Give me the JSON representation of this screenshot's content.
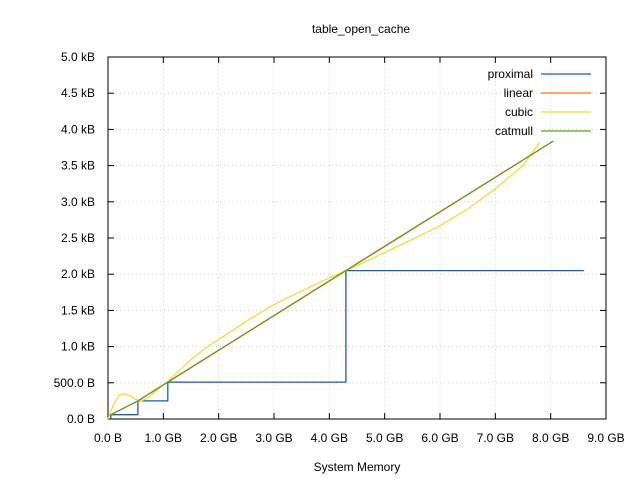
{
  "chart_data": {
    "type": "line",
    "title": "table_open_cache",
    "xlabel": "System Memory",
    "ylabel": "",
    "xlim": [
      0,
      9
    ],
    "ylim": [
      0,
      5
    ],
    "x_unit": "GB",
    "y_unit": "kB",
    "grid": true,
    "legend_position": "top-right",
    "x_ticks": [
      {
        "value": 0,
        "label": "0.0  B"
      },
      {
        "value": 1,
        "label": "1.0 GB"
      },
      {
        "value": 2,
        "label": "2.0 GB"
      },
      {
        "value": 3,
        "label": "3.0 GB"
      },
      {
        "value": 4,
        "label": "4.0 GB"
      },
      {
        "value": 5,
        "label": "5.0 GB"
      },
      {
        "value": 6,
        "label": "6.0 GB"
      },
      {
        "value": 7,
        "label": "7.0 GB"
      },
      {
        "value": 8,
        "label": "8.0 GB"
      },
      {
        "value": 9,
        "label": "9.0 GB"
      }
    ],
    "y_ticks": [
      {
        "value": 0,
        "label": "0.0  B"
      },
      {
        "value": 0.5,
        "label": "500.0  B"
      },
      {
        "value": 1.0,
        "label": "1.0 kB"
      },
      {
        "value": 1.5,
        "label": "1.5 kB"
      },
      {
        "value": 2.0,
        "label": "2.0 kB"
      },
      {
        "value": 2.5,
        "label": "2.5 kB"
      },
      {
        "value": 3.0,
        "label": "3.0 kB"
      },
      {
        "value": 3.5,
        "label": "3.5 kB"
      },
      {
        "value": 4.0,
        "label": "4.0 kB"
      },
      {
        "value": 4.5,
        "label": "4.5 kB"
      },
      {
        "value": 5.0,
        "label": "5.0 kB"
      }
    ],
    "series": [
      {
        "name": "proximal",
        "color": "#1f5fa0",
        "step": true,
        "x": [
          0.05,
          0.05,
          0.54,
          0.54,
          1.08,
          1.08,
          4.3,
          4.3,
          8.6
        ],
        "y": [
          0.0,
          0.06,
          0.06,
          0.25,
          0.25,
          0.51,
          0.51,
          2.05,
          2.05
        ]
      },
      {
        "name": "linear",
        "color": "#ff6c1a",
        "x": [
          0.05,
          0.54,
          1.08,
          4.3,
          8.05
        ],
        "y": [
          0.06,
          0.25,
          0.51,
          2.05,
          3.84
        ]
      },
      {
        "name": "cubic",
        "color": "#f0dc3c",
        "x": [
          0.0,
          0.1,
          0.2,
          0.3,
          0.4,
          0.5,
          0.6,
          0.7,
          0.8,
          0.9,
          1.0,
          1.1,
          1.3,
          1.5,
          1.8,
          2.0,
          2.5,
          3.0,
          3.5,
          4.0,
          4.3,
          5.0,
          5.5,
          6.0,
          6.5,
          7.0,
          7.5,
          7.8
        ],
        "y": [
          0.0,
          0.2,
          0.33,
          0.35,
          0.32,
          0.27,
          0.25,
          0.28,
          0.34,
          0.41,
          0.47,
          0.53,
          0.68,
          0.82,
          1.0,
          1.1,
          1.35,
          1.58,
          1.77,
          1.95,
          2.05,
          2.3,
          2.48,
          2.67,
          2.9,
          3.18,
          3.5,
          3.82
        ]
      },
      {
        "name": "catmull",
        "color": "#6a9a1f",
        "x": [
          0.05,
          0.54,
          1.08,
          4.3,
          8.05
        ],
        "y": [
          0.06,
          0.25,
          0.51,
          2.05,
          3.84
        ]
      }
    ]
  }
}
